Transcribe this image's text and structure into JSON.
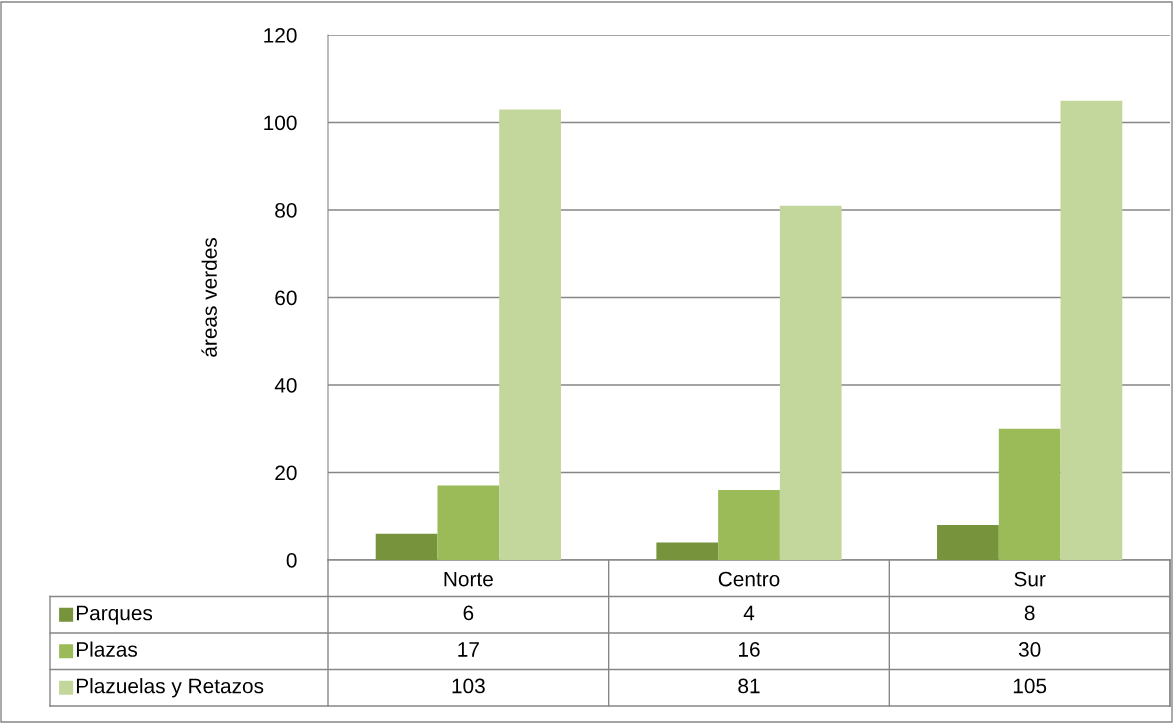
{
  "chart_data": {
    "type": "bar",
    "ylabel": "áreas verdes",
    "categories": [
      "Norte",
      "Centro",
      "Sur"
    ],
    "series": [
      {
        "name": "Parques",
        "color": "#77933c",
        "values": [
          6,
          4,
          8
        ]
      },
      {
        "name": "Plazas",
        "color": "#9bbb59",
        "values": [
          17,
          16,
          30
        ]
      },
      {
        "name": "Plazuelas y Retazos",
        "color": "#c3d69b",
        "values": [
          103,
          81,
          105
        ]
      }
    ],
    "ylim": [
      0,
      120
    ],
    "yticks": [
      0,
      20,
      40,
      60,
      80,
      100,
      120
    ],
    "grid": "y",
    "legend": "bottom left",
    "data_labels": true
  }
}
